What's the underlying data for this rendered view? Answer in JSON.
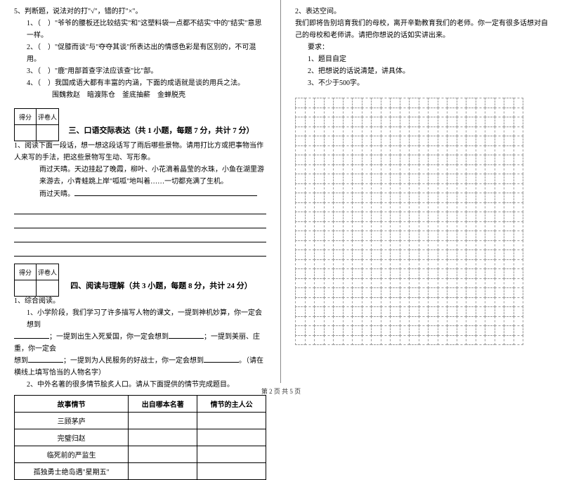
{
  "q5": {
    "title": "5、判断题，说法对的打\"√\"，错的打\"×\"。",
    "items": [
      "1、（　）\"爷爷的腰板还比较结实\"和\"这塑料袋一点都不结实\"中的\"结实\"意思一样。",
      "2、（　）\"促膝而谈\"与\"夺夺其谈\"所表达出的情感色彩是有区别的，不可混用。",
      "3、（　）\"鹿\"用部首查字法应该查\"比\"部。",
      "4、（　）我国成语大都有丰富的内涵，下面的成语就是谈的用兵之法。"
    ],
    "idioms": "围魏救赵　暗渡陈仓　釜底抽薪　金蝉脱壳"
  },
  "scoreLabels": {
    "a": "得分",
    "b": "评卷人"
  },
  "section3": {
    "title": "三、口语交际表达（共 1 小题，每题 7 分，共计 7 分）",
    "q1": "1、阅读下面一段话，想一想这段话写了雨后哪些景物。请用打比方或把事物当作人来写的手法，把这些景物写生动、写形象。",
    "p1": "雨过天晴。天边挂起了晚霞，柳叶、小花滴着晶莹的水珠，小鱼在湖里游来游去，小青蛙跳上岸\"呱呱\"地叫着……一切都充满了生机。",
    "p2head": "雨过天晴。"
  },
  "section4": {
    "title": "四、阅读与理解（共 3 小题，每题 8 分，共计 24 分）",
    "q1": "1、综合阅读。",
    "sub1a": "1、小学阶段，我们学习了许多描写人物的课文，一提到神机妙算，你一定会想到",
    "sub1b": "；一提到出生入死爱国，你一定会想到",
    "sub1c": "；一提到美丽、庄重，你一定会",
    "sub1d": "想到",
    "sub1e": "；一提到为人民服务的好战士，你一定会想到",
    "sub1f": "。（请在横线上填写恰当的人物名字）",
    "sub2": "2、中外名著的很多情节脍炙人口。请从下面提供的情节完成题目。",
    "table": {
      "h1": "故事情节",
      "h2": "出自哪本名著",
      "h3": "情节的主人公",
      "r1": "三顾茅庐",
      "r2": "完璧归赵",
      "r3": "临死前的严监生",
      "r4": "孤独勇士绝岛遇\"星期五\""
    }
  },
  "right": {
    "q2": "2、表达空间。",
    "p1": "我们即将告别培育我们的母校，离开辛勤教育我们的老师。你一定有很多话想对自己的母校和老师讲。请把你想说的话如实讲出来。",
    "req": "要求：",
    "r1": "1、题目自定",
    "r2": "2、把想说的话说清楚，讲具体。",
    "r3": "3、不少于500字。"
  },
  "footer": "第 2 页 共 5 页",
  "grid": {
    "rows": 26,
    "cols": 24
  }
}
